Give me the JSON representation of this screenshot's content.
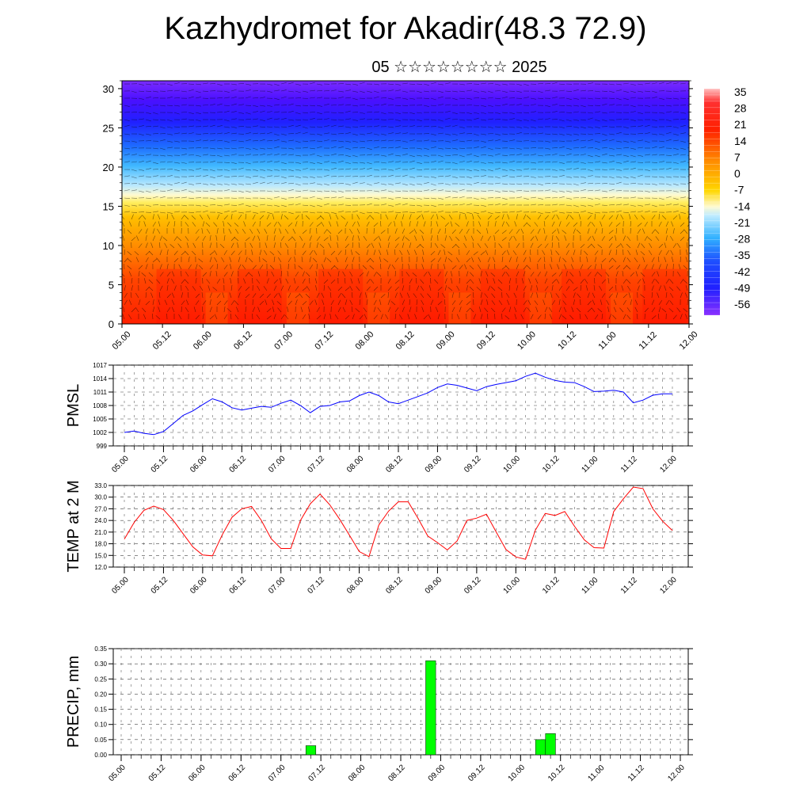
{
  "title": "Kazhydromet for Akadir(48.3 72.9)",
  "subtitle": "05 ☆☆☆☆☆☆☆☆ 2025",
  "chart_data": [
    {
      "type": "heatmap",
      "description_panel": "cross-section",
      "x_ticks": [
        "05.00",
        "05.12",
        "06.00",
        "06.12",
        "07.00",
        "07.12",
        "08.00",
        "08.12",
        "09.00",
        "09.12",
        "10.00",
        "10.12",
        "11.00",
        "11.12",
        "12.00"
      ],
      "y_ticks": [
        "0",
        "5",
        "10",
        "15",
        "20",
        "25",
        "30"
      ],
      "ylim": [
        0,
        31
      ],
      "colorbar_labels": [
        "35",
        "28",
        "21",
        "14",
        "7",
        "0",
        "-7",
        "-14",
        "-21",
        "-28",
        "-35",
        "-42",
        "-49",
        "-56"
      ],
      "value_range": [
        -60,
        38
      ],
      "colors": {
        "hot": "#ff0000",
        "warm": "#ffa500",
        "neutral": "#ffffc8",
        "cool": "#00aaff",
        "cold": "#2020ff",
        "coldest": "#6a00ff"
      },
      "x": [
        0,
        2,
        4,
        6,
        8,
        10,
        12,
        14
      ],
      "series": [
        {
          "label_height_km": 0,
          "values": [
            22,
            20,
            24,
            22,
            21,
            23,
            20,
            24
          ]
        },
        {
          "label_height_km": 5,
          "values": [
            18,
            17,
            20,
            18,
            17,
            19,
            17,
            20
          ]
        },
        {
          "label_height_km": 10,
          "values": [
            10,
            10,
            12,
            10,
            10,
            11,
            10,
            12
          ]
        },
        {
          "label_height_km": 15,
          "values": [
            2,
            0,
            3,
            1,
            1,
            2,
            0,
            3
          ]
        },
        {
          "label_height_km": 18,
          "values": [
            -20,
            -22,
            -18,
            -20,
            -21,
            -19,
            -22,
            -18
          ]
        },
        {
          "label_height_km": 22,
          "values": [
            -40,
            -42,
            -38,
            -40,
            -40,
            -39,
            -41,
            -38
          ]
        },
        {
          "label_height_km": 26,
          "values": [
            -55,
            -56,
            -54,
            -55,
            -55,
            -54,
            -56,
            -54
          ]
        },
        {
          "label_height_km": 30,
          "values": [
            -48,
            -50,
            -47,
            -48,
            -49,
            -48,
            -50,
            -47
          ]
        }
      ]
    },
    {
      "type": "line",
      "ylabel": "PMSL",
      "ylim": [
        999,
        1017
      ],
      "y_ticks": [
        "999",
        "1002",
        "1005",
        "1008",
        "1011",
        "1014",
        "1017"
      ],
      "x_ticks": [
        "05.00",
        "05.12",
        "06.00",
        "06.12",
        "07.00",
        "07.12",
        "08.00",
        "08.12",
        "09.00",
        "09.12",
        "10.00",
        "10.12",
        "11.00",
        "11.12",
        "12.00"
      ],
      "x": [
        0,
        0.25,
        0.5,
        0.75,
        1,
        1.25,
        1.5,
        1.75,
        2,
        2.25,
        2.5,
        2.75,
        3,
        3.25,
        3.5,
        3.75,
        4,
        4.25,
        4.5,
        4.75,
        5,
        5.25,
        5.5,
        5.75,
        6,
        6.25,
        6.5,
        6.75,
        7,
        7.25,
        7.5,
        7.75,
        8,
        8.25,
        8.5,
        8.75,
        9,
        9.25,
        9.5,
        9.75,
        10,
        10.25,
        10.5,
        10.75,
        11,
        11.25,
        11.5,
        11.75,
        12,
        12.25,
        12.5,
        12.75,
        13,
        13.25,
        13.5,
        13.75,
        14
      ],
      "series": [
        {
          "color": "#0000ff",
          "values": [
            1002.0,
            1002.3,
            1001.8,
            1001.5,
            1002.2,
            1004.0,
            1005.8,
            1006.8,
            1008.2,
            1009.5,
            1008.8,
            1007.5,
            1007.0,
            1007.4,
            1007.8,
            1007.6,
            1008.5,
            1009.2,
            1008.0,
            1006.4,
            1007.8,
            1008.0,
            1008.8,
            1009.0,
            1010.2,
            1011.0,
            1010.2,
            1008.8,
            1008.4,
            1009.2,
            1010.0,
            1010.8,
            1012.0,
            1012.8,
            1012.5,
            1011.9,
            1011.3,
            1012.2,
            1012.7,
            1013.1,
            1013.5,
            1014.5,
            1015.2,
            1014.3,
            1013.6,
            1013.2,
            1013.1,
            1012.2,
            1011.1,
            1011.2,
            1011.4,
            1011.0,
            1008.6,
            1009.2,
            1010.3,
            1010.6,
            1010.6
          ]
        }
      ]
    },
    {
      "type": "line",
      "ylabel": "TEMP at 2 M",
      "ylim": [
        12,
        33
      ],
      "y_ticks": [
        "12.0",
        "15.0",
        "18.0",
        "21.0",
        "24.0",
        "27.0",
        "30.0",
        "33.0"
      ],
      "x_ticks": [
        "05.00",
        "05.12",
        "06.00",
        "06.12",
        "07.00",
        "07.12",
        "08.00",
        "08.12",
        "09.00",
        "09.12",
        "10.00",
        "10.12",
        "11.00",
        "11.12",
        "12.00"
      ],
      "x": [
        0,
        0.25,
        0.5,
        0.75,
        1,
        1.25,
        1.5,
        1.75,
        2,
        2.25,
        2.5,
        2.75,
        3,
        3.25,
        3.5,
        3.75,
        4,
        4.25,
        4.5,
        4.75,
        5,
        5.25,
        5.5,
        5.75,
        6,
        6.25,
        6.5,
        6.75,
        7,
        7.25,
        7.5,
        7.75,
        8,
        8.25,
        8.5,
        8.75,
        9,
        9.25,
        9.5,
        9.75,
        10,
        10.25,
        10.5,
        10.75,
        11,
        11.25,
        11.5,
        11.75,
        12,
        12.25,
        12.5,
        12.75,
        13,
        13.25,
        13.5,
        13.75,
        14
      ],
      "series": [
        {
          "color": "#ff0000",
          "values": [
            19.2,
            23.5,
            26.6,
            27.7,
            26.8,
            24.0,
            20.6,
            17.2,
            15.1,
            14.9,
            20.3,
            24.8,
            27.0,
            27.6,
            24.0,
            19.3,
            16.8,
            16.8,
            24.0,
            28.3,
            30.8,
            28.0,
            24.3,
            20.2,
            16.0,
            14.7,
            22.8,
            26.4,
            28.8,
            28.8,
            24.6,
            20.0,
            18.3,
            16.4,
            18.7,
            24.0,
            24.6,
            25.6,
            21.0,
            16.5,
            14.6,
            14.0,
            21.5,
            25.8,
            25.3,
            26.3,
            22.5,
            19.0,
            17.0,
            16.9,
            26.3,
            29.6,
            32.6,
            32.2,
            27.0,
            23.8,
            21.4
          ]
        }
      ]
    },
    {
      "type": "bar",
      "ylabel": "PRECIP, mm",
      "ylim": [
        0,
        0.35
      ],
      "y_ticks": [
        "0.00",
        "0.05",
        "0.10",
        "0.15",
        "0.20",
        "0.25",
        "0.30",
        "0.35"
      ],
      "x_ticks": [
        "05.00",
        "05.12",
        "06.00",
        "06.12",
        "07.00",
        "07.12",
        "08.00",
        "08.12",
        "09.00",
        "09.12",
        "10.00",
        "10.12",
        "11.00",
        "11.12",
        "12.00"
      ],
      "bar_color": "#00ff00",
      "x": [
        4.75,
        7.75,
        10.5,
        10.75
      ],
      "values": [
        0.03,
        0.31,
        0.05,
        0.07
      ]
    }
  ]
}
